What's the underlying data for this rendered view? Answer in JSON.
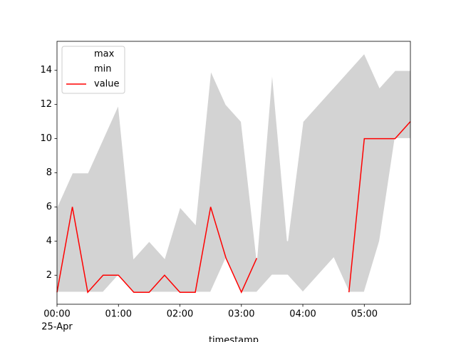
{
  "chart_data": {
    "type": "range_line",
    "x_label": "timestamp",
    "date_label": "25-Apr",
    "x": [
      0,
      0.25,
      0.5,
      0.75,
      1,
      1.25,
      1.5,
      1.75,
      2,
      2.25,
      2.5,
      2.75,
      3,
      3.25,
      3.5,
      3.75,
      4,
      4.25,
      4.5,
      4.75,
      5,
      5.25,
      5.5,
      5.75
    ],
    "series": [
      {
        "name": "max",
        "color": "white",
        "values": [
          6,
          8,
          8,
          10,
          12,
          3,
          4,
          3,
          6,
          5,
          14,
          12,
          11,
          3,
          14,
          4,
          11,
          12,
          13,
          14,
          15,
          13,
          14,
          14
        ]
      },
      {
        "name": "min",
        "color": "white",
        "values": [
          1,
          1,
          1,
          1,
          2,
          1,
          1,
          1,
          1,
          1,
          1,
          3,
          1,
          1,
          2,
          2,
          1,
          2,
          3,
          1,
          1,
          4,
          10,
          10
        ]
      },
      {
        "name": "value",
        "color": "red",
        "values": [
          1,
          6,
          1,
          2,
          2,
          1,
          1,
          2,
          1,
          1,
          6,
          3,
          1,
          3,
          null,
          null,
          null,
          null,
          null,
          1,
          10,
          10,
          10,
          11
        ]
      }
    ],
    "fill_color": "lightgray",
    "xlim": [
      0,
      5.75
    ],
    "xticks": [
      {
        "value": 0,
        "label": "00:00"
      },
      {
        "value": 1,
        "label": "01:00"
      },
      {
        "value": 2,
        "label": "02:00"
      },
      {
        "value": 3,
        "label": "03:00"
      },
      {
        "value": 4,
        "label": "04:00"
      },
      {
        "value": 5,
        "label": "05:00"
      }
    ],
    "ylim": [
      0.3,
      15.7
    ],
    "yticks": [
      2,
      4,
      6,
      8,
      10,
      12,
      14
    ],
    "legend": "upper left"
  }
}
